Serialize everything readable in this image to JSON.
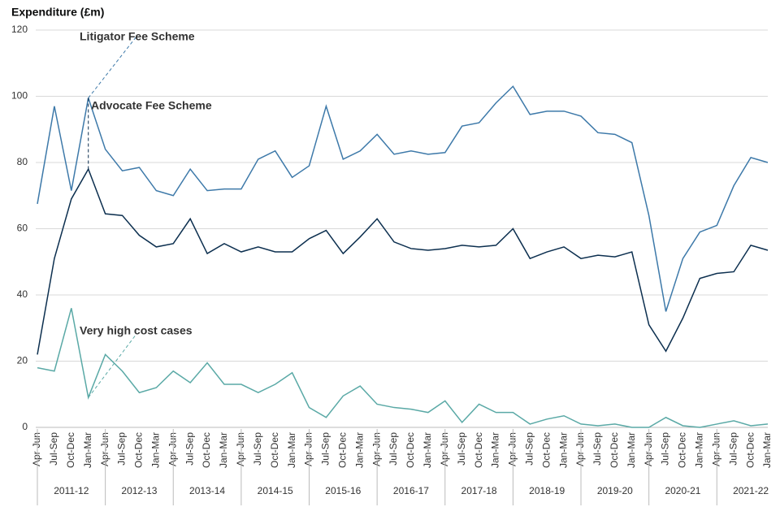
{
  "chart_data": {
    "type": "line",
    "y_label": "Expenditure (£m)",
    "categories": [
      "Apr-Jun",
      "Jul-Sep",
      "Oct-Dec",
      "Jan-Mar",
      "Apr-Jun",
      "Jul-Sep",
      "Oct-Dec",
      "Jan-Mar",
      "Apr-Jun",
      "Jul-Sep",
      "Oct-Dec",
      "Jan-Mar",
      "Apr-Jun",
      "Jul-Sep",
      "Oct-Dec",
      "Jan-Mar",
      "Apr-Jun",
      "Jul-Sep",
      "Oct-Dec",
      "Jan-Mar",
      "Apr-Jun",
      "Jul-Sep",
      "Oct-Dec",
      "Jan-Mar",
      "Apr-Jun",
      "Jul-Sep",
      "Oct-Dec",
      "Jan-Mar",
      "Apr-Jun",
      "Jul-Sep",
      "Oct-Dec",
      "Jan-Mar",
      "Apr-Jun",
      "Jul-Sep",
      "Oct-Dec",
      "Jan-Mar",
      "Apr-Jun",
      "Jul-Sep",
      "Oct-Dec",
      "Jan-Mar",
      "Apr-Jun",
      "Jul-Sep",
      "Oct-Dec",
      "Jan-Mar"
    ],
    "category_groups": [
      "2011-12",
      "2012-13",
      "2013-14",
      "2014-15",
      "2015-16",
      "2016-17",
      "2017-18",
      "2018-19",
      "2019-20",
      "2020-21",
      "2021-22"
    ],
    "series": [
      {
        "name": "Litigator Fee Scheme",
        "color": "#3d79a9",
        "values": [
          67.5,
          97,
          71.5,
          99.5,
          84,
          77.5,
          78.5,
          71.5,
          70,
          78,
          71.5,
          72,
          72,
          81,
          83.5,
          75.5,
          79,
          97,
          81,
          83.5,
          88.5,
          82.5,
          83.5,
          82.5,
          83,
          91,
          92,
          98,
          103,
          94.5,
          95.5,
          95.5,
          94,
          89,
          88.5,
          86,
          64,
          35,
          51,
          59,
          61,
          73,
          81.5,
          80
        ]
      },
      {
        "name": "Advocate Fee Scheme",
        "color": "#0c2f4f",
        "values": [
          22,
          51,
          69,
          78,
          64.5,
          64,
          58,
          54.5,
          55.5,
          63,
          52.5,
          55.5,
          53,
          54.5,
          53,
          53,
          57,
          59.5,
          52.5,
          57.5,
          63,
          56,
          54,
          53.5,
          54,
          55,
          54.5,
          55,
          60,
          51,
          53,
          54.5,
          51,
          52,
          51.5,
          53,
          31,
          23,
          33,
          45,
          46.5,
          47,
          55,
          53.5
        ]
      },
      {
        "name": "Very high cost cases",
        "color": "#5aa9a6",
        "values": [
          18,
          17,
          36,
          9,
          22,
          17,
          10.5,
          12,
          17,
          13.5,
          19.5,
          13,
          13,
          10.5,
          13,
          16.5,
          6,
          3,
          9.5,
          12.5,
          7,
          6,
          5.5,
          4.5,
          8,
          1.5,
          7,
          4.5,
          4.5,
          1,
          2.5,
          3.5,
          1,
          0.5,
          1,
          0,
          0,
          3,
          0.5,
          0,
          1,
          2,
          0.5,
          1
        ]
      }
    ],
    "ylim": [
      0,
      120
    ],
    "yticks": [
      0,
      20,
      40,
      60,
      80,
      100,
      120
    ],
    "grid": true
  }
}
